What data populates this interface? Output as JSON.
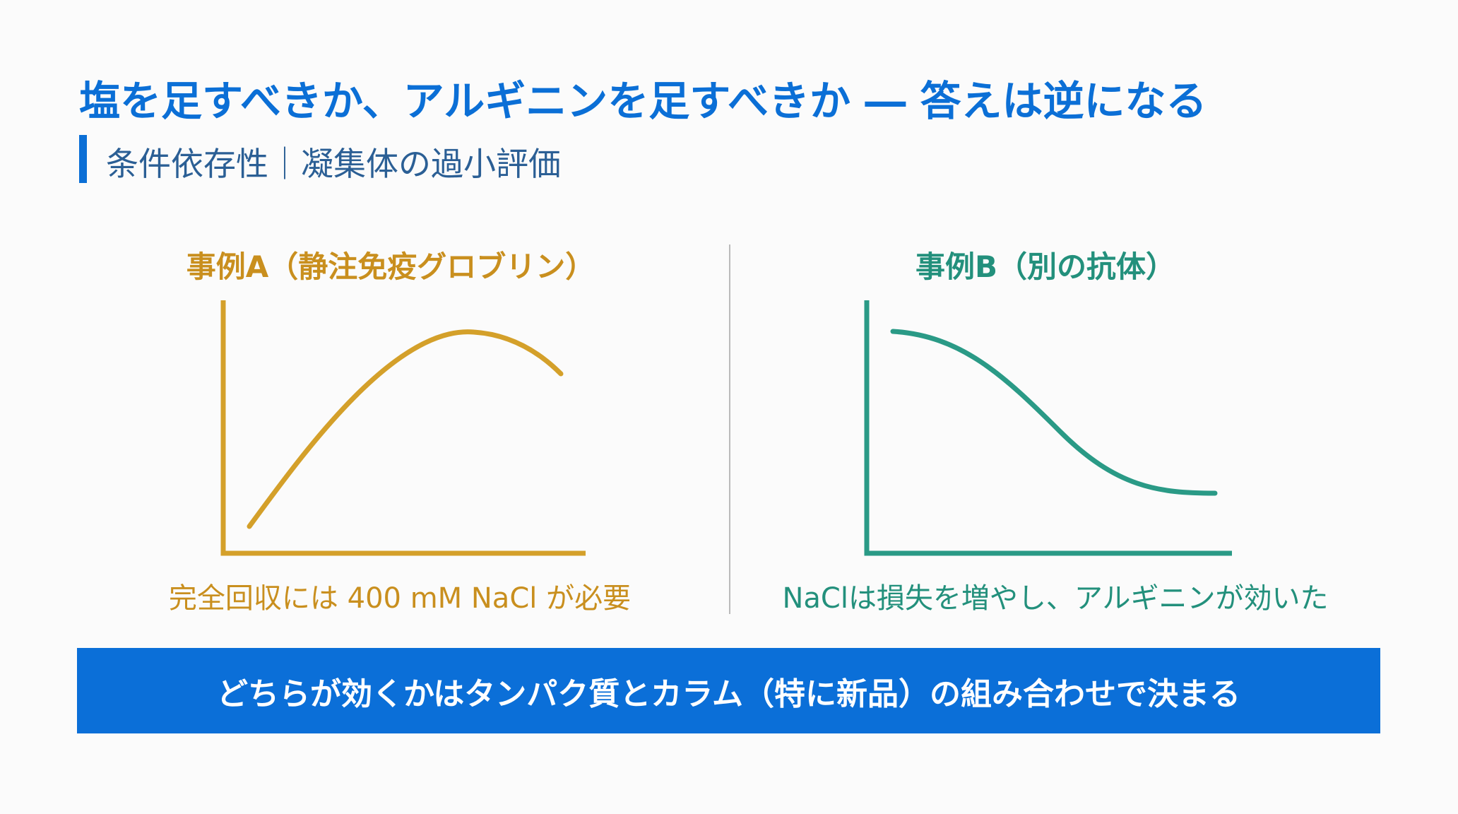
{
  "header": {
    "title": "塩を足すべきか、アルギニンを足すべきか ― 答えは逆になる",
    "subtitle": "条件依存性｜凝集体の過小評価"
  },
  "panels": [
    {
      "title": "事例A（静注免疫グロブリン）",
      "caption": "完全回収には 400 mM NaCl が必要"
    },
    {
      "title": "事例B（別の抗体）",
      "caption": "NaClは損失を増やし、アルギニンが効いた"
    }
  ],
  "banner": {
    "text": "どちらが効くかはタンパク質とカラム（特に新品）の組み合わせで決まる"
  }
}
